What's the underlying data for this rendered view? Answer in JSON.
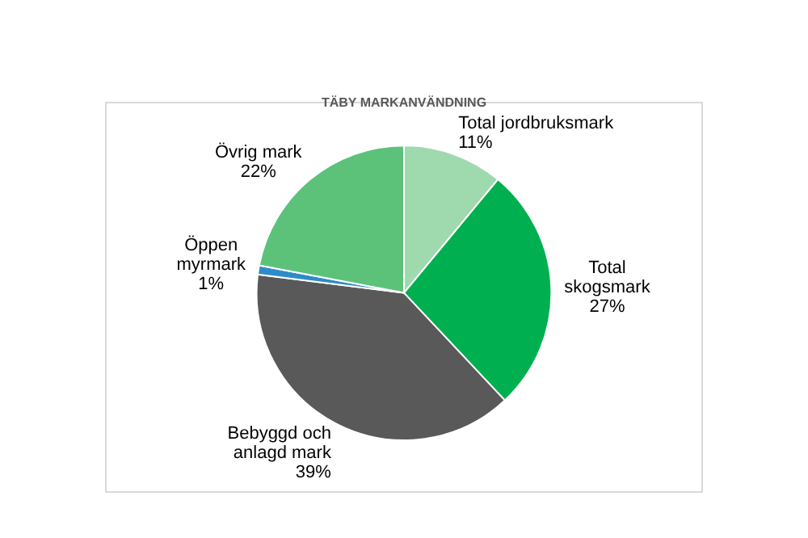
{
  "chart_data": {
    "type": "pie",
    "title": "TÄBY MARKANVÄNDNING",
    "categories": [
      "Total jordbruksmark",
      "Total skogsmark",
      "Bebyggd och anlagd mark",
      "Öppen myrmark",
      "Övrig mark"
    ],
    "values": [
      11,
      27,
      39,
      1,
      22
    ],
    "colors": [
      "#9fd9ae",
      "#00b050",
      "#595959",
      "#2e8bc9",
      "#5cc27a"
    ],
    "value_labels": [
      "11%",
      "27%",
      "39%",
      "1%",
      "22%"
    ]
  }
}
